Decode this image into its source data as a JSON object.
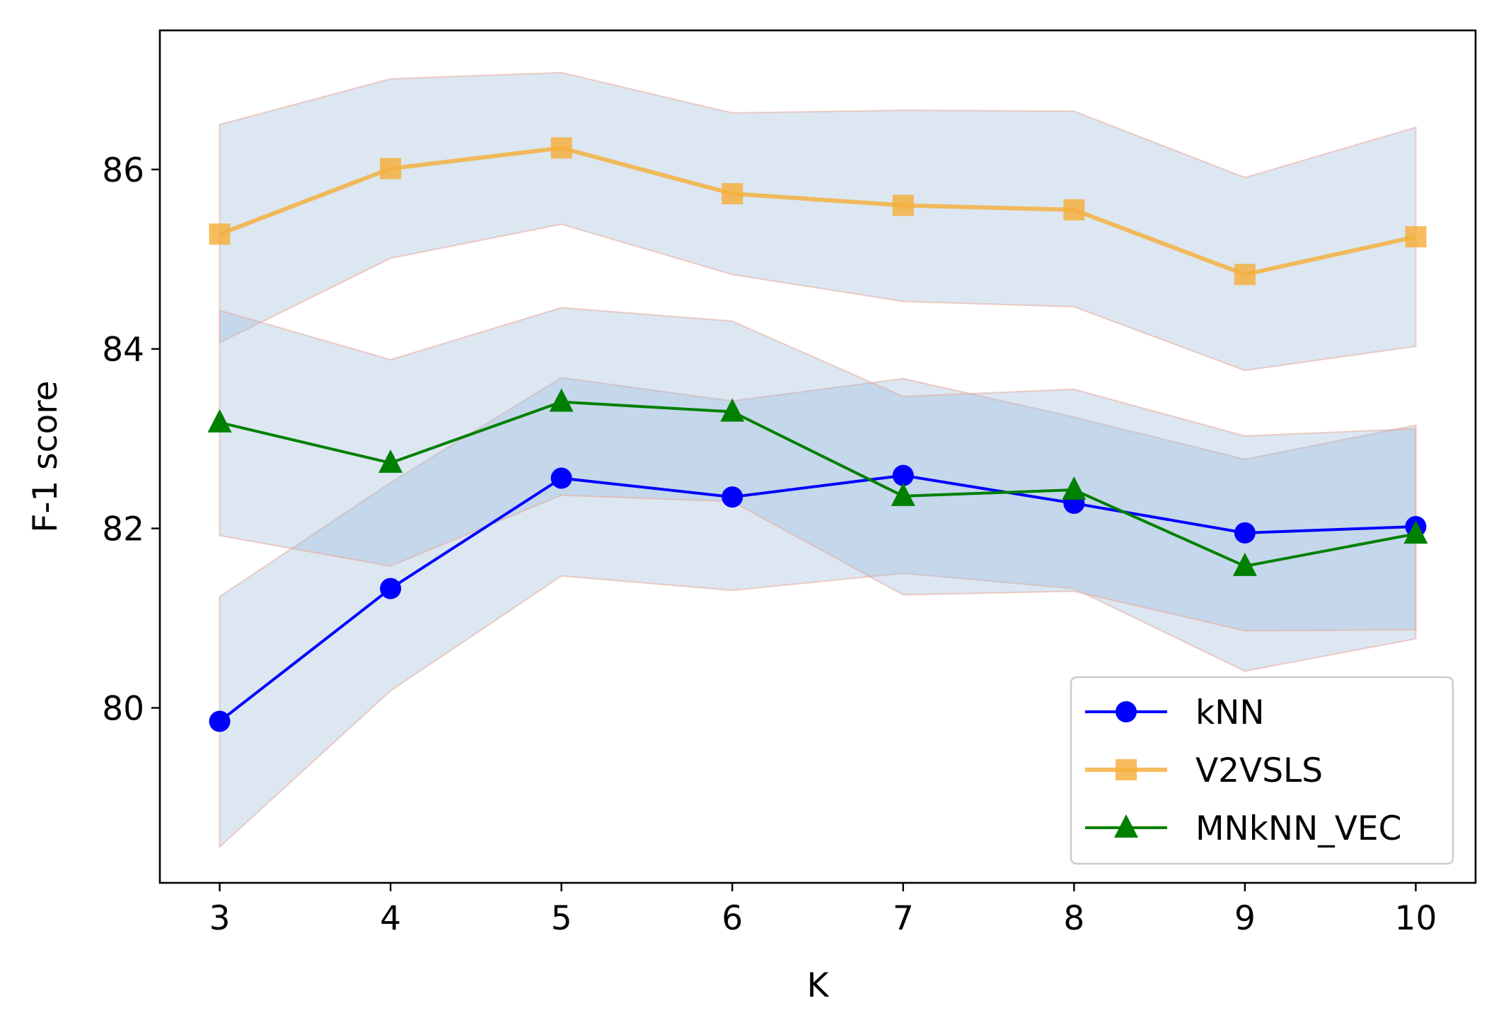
{
  "chart_data": {
    "type": "line",
    "title": "",
    "xlabel": "K",
    "ylabel": "F-1 score",
    "x": [
      3,
      4,
      5,
      6,
      7,
      8,
      9,
      10
    ],
    "xlim": [
      2.65,
      10.35
    ],
    "ylim": [
      78.05,
      87.55
    ],
    "xticks": [
      3,
      4,
      5,
      6,
      7,
      8,
      9,
      10
    ],
    "yticks": [
      80,
      82,
      84,
      86
    ],
    "grid": false,
    "legend_position": "lower-right",
    "series": [
      {
        "name": "kNN",
        "color": "#0000ff",
        "marker": "circle",
        "values": [
          79.85,
          81.33,
          82.56,
          82.35,
          82.59,
          82.28,
          81.95,
          82.02
        ],
        "band_lower": [
          78.45,
          80.19,
          81.47,
          81.31,
          81.5,
          81.33,
          80.41,
          80.77
        ],
        "band_upper": [
          81.24,
          82.51,
          83.68,
          83.42,
          83.67,
          83.24,
          82.77,
          83.15
        ]
      },
      {
        "name": "V2VSLS",
        "color": "#f5b041",
        "marker": "square",
        "values": [
          85.28,
          86.01,
          86.24,
          85.73,
          85.6,
          85.55,
          84.83,
          85.25
        ],
        "band_lower": [
          84.07,
          85.01,
          85.39,
          84.83,
          84.53,
          84.47,
          83.76,
          84.03
        ],
        "band_upper": [
          86.5,
          87.01,
          87.08,
          86.63,
          86.66,
          86.65,
          85.91,
          86.47
        ]
      },
      {
        "name": "MNkNN_VEC",
        "color": "#008000",
        "marker": "triangle",
        "values": [
          83.18,
          82.73,
          83.41,
          83.3,
          82.36,
          82.43,
          81.58,
          81.94
        ],
        "band_lower": [
          81.92,
          81.58,
          82.37,
          82.3,
          81.26,
          81.3,
          80.86,
          80.87
        ],
        "band_upper": [
          84.43,
          83.88,
          84.46,
          84.31,
          83.47,
          83.55,
          83.03,
          83.11
        ]
      }
    ]
  }
}
